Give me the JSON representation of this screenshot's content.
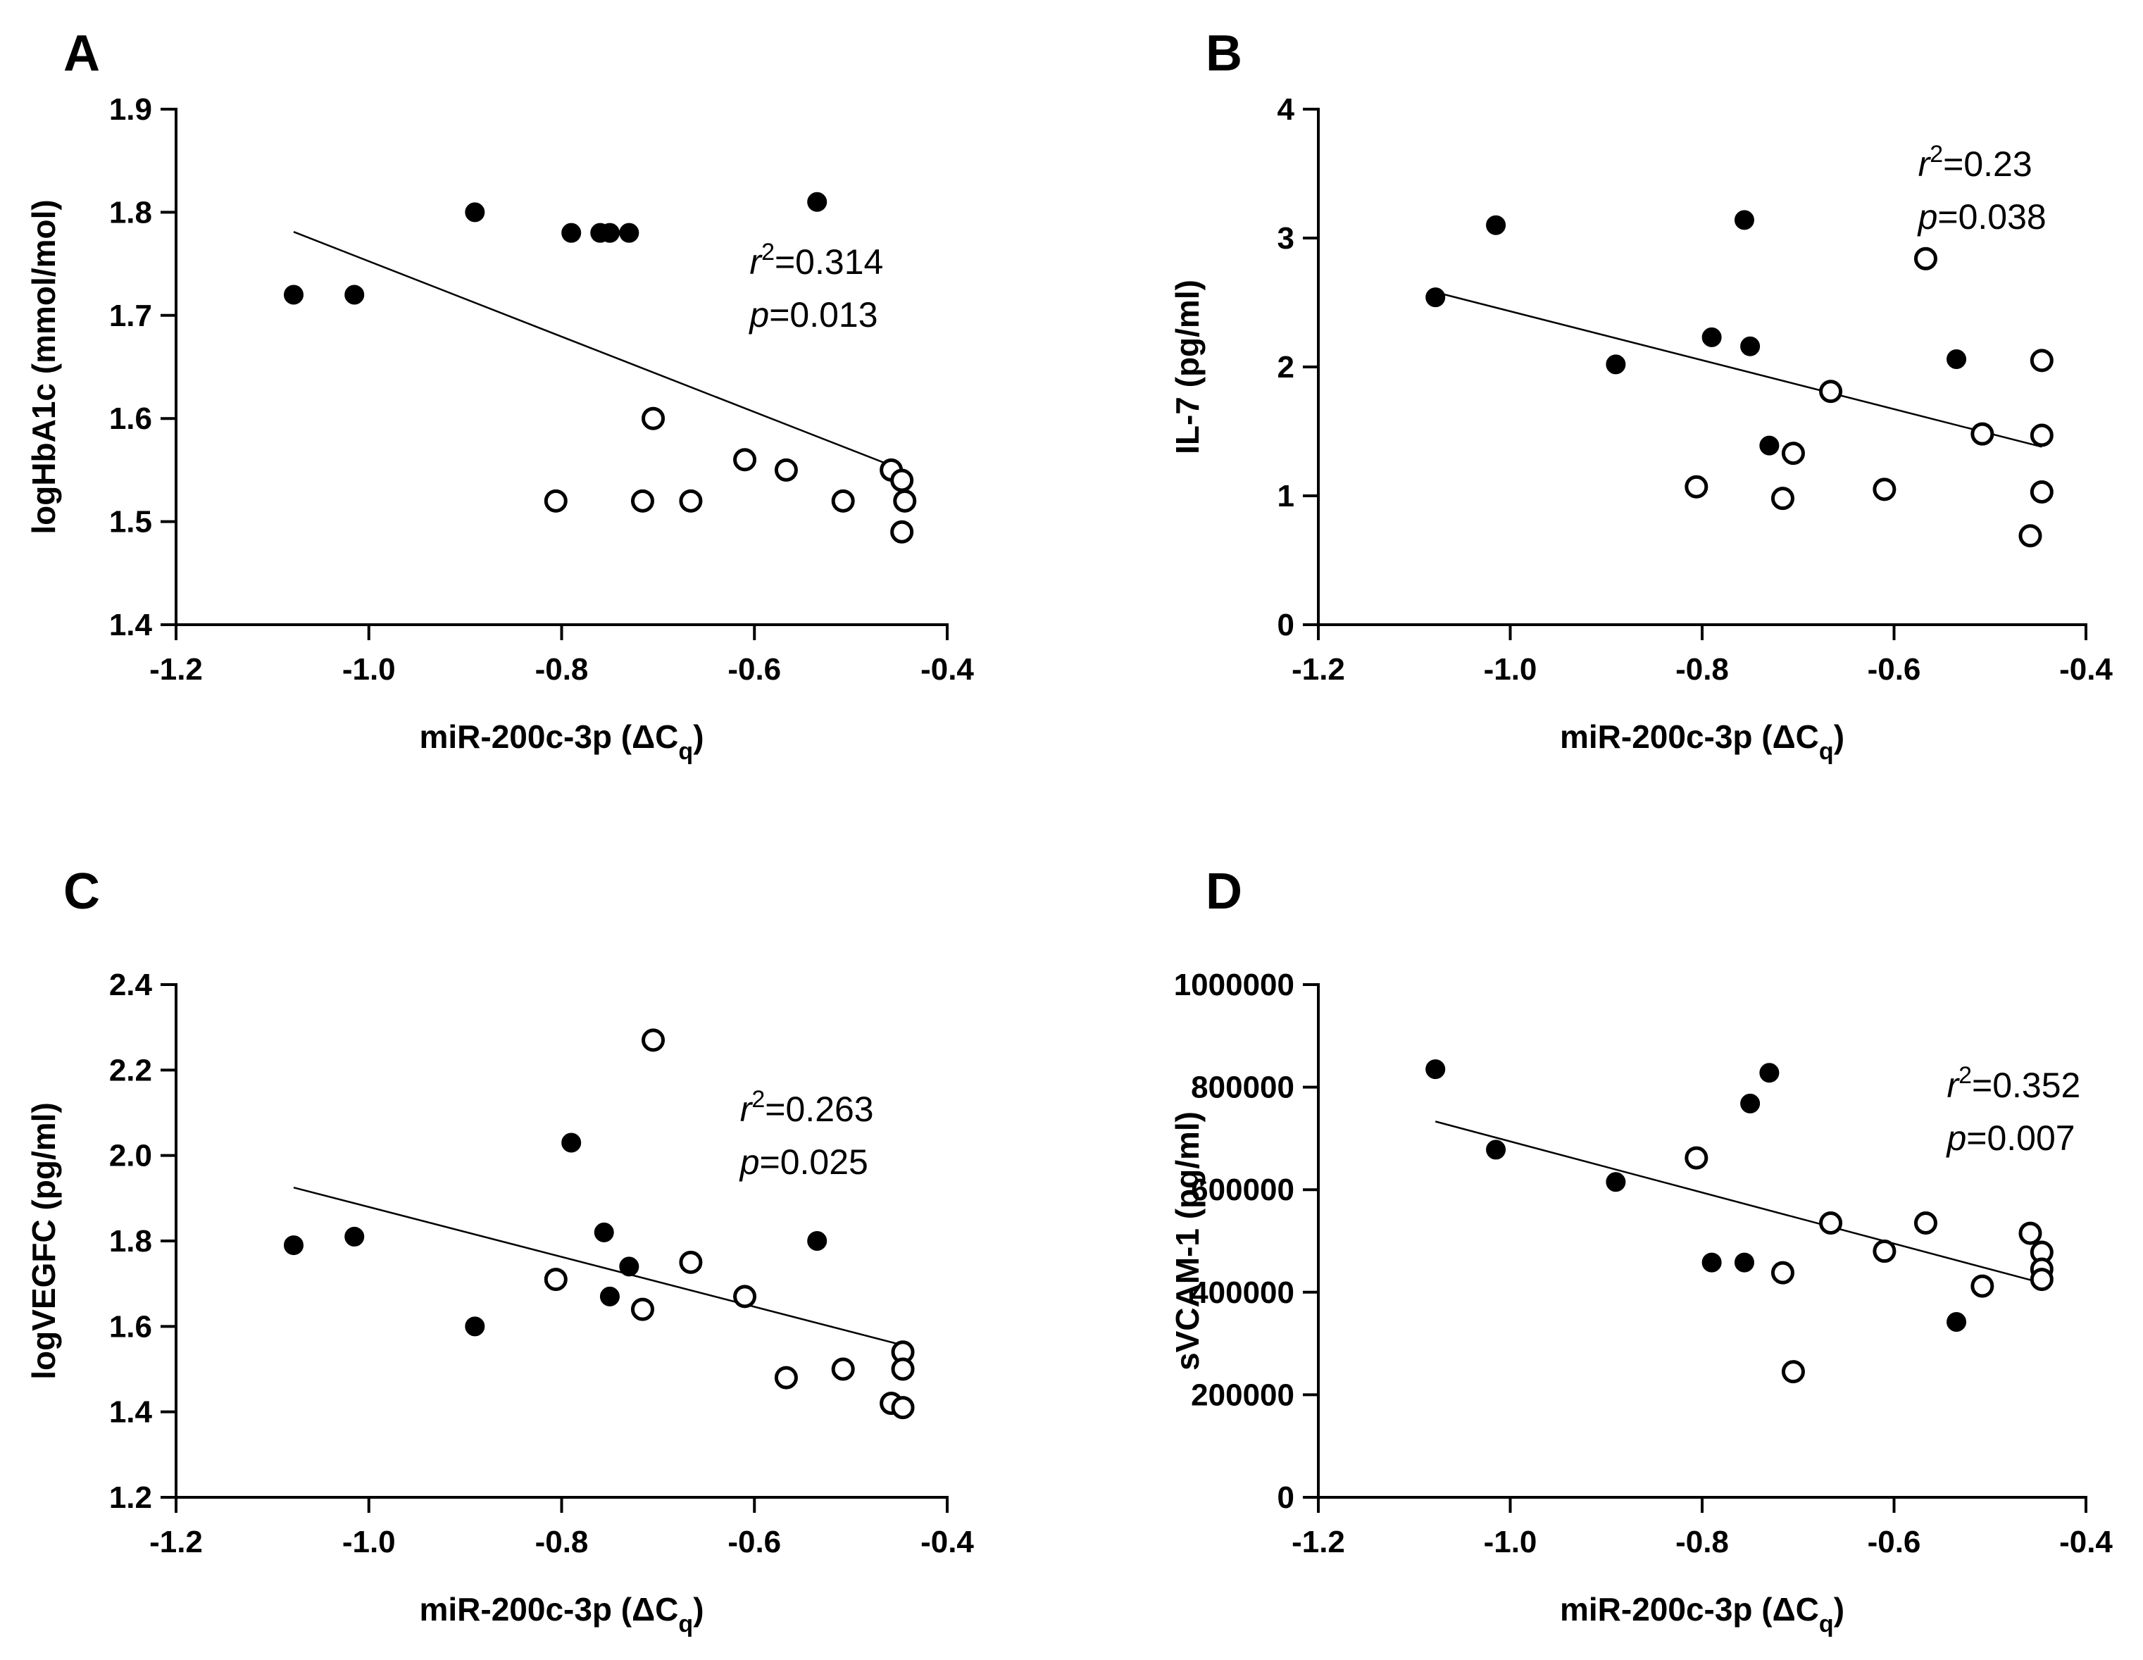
{
  "chart_data": [
    {
      "id": "A",
      "type": "scatter",
      "panel_label": "A",
      "xlabel": "miR-200c-3p (ΔC",
      "xlabel_sub": "q",
      "xlabel_tail": ")",
      "ylabel": "logHbA1c (mmol/mol)",
      "xlim": [
        -1.2,
        -0.4
      ],
      "ylim": [
        1.4,
        1.9
      ],
      "xticks": [
        -1.2,
        -1.0,
        -0.8,
        -0.6,
        -0.4
      ],
      "xtick_labels": [
        "-1.2",
        "-1.0",
        "-0.8",
        "-0.6",
        "-0.4"
      ],
      "yticks": [
        1.4,
        1.5,
        1.6,
        1.7,
        1.8,
        1.9
      ],
      "ytick_labels": [
        "1.4",
        "1.5",
        "1.6",
        "1.7",
        "1.8",
        "1.9"
      ],
      "series": [
        {
          "name": "filled",
          "style": "filled",
          "points": [
            [
              -1.078,
              1.72
            ],
            [
              -1.015,
              1.72
            ],
            [
              -0.89,
              1.8
            ],
            [
              -0.79,
              1.78
            ],
            [
              -0.76,
              1.78
            ],
            [
              -0.75,
              1.78
            ],
            [
              -0.73,
              1.78
            ],
            [
              -0.535,
              1.81
            ]
          ]
        },
        {
          "name": "open",
          "style": "open",
          "points": [
            [
              -0.806,
              1.52
            ],
            [
              -0.705,
              1.6
            ],
            [
              -0.716,
              1.52
            ],
            [
              -0.666,
              1.52
            ],
            [
              -0.61,
              1.56
            ],
            [
              -0.567,
              1.55
            ],
            [
              -0.508,
              1.52
            ],
            [
              -0.458,
              1.55
            ],
            [
              -0.447,
              1.54
            ],
            [
              -0.444,
              1.52
            ],
            [
              -0.447,
              1.49
            ]
          ]
        }
      ],
      "regression": {
        "x": [
          -1.078,
          -0.446
        ],
        "y": [
          1.781,
          1.55
        ]
      },
      "stats": {
        "r2_sym": "r",
        "r2_sup": "2",
        "r2_val": "=0.314",
        "p_sym": "p",
        "p_val": "=0.013",
        "x": -0.605,
        "y": 1.74
      }
    },
    {
      "id": "B",
      "type": "scatter",
      "panel_label": "B",
      "xlabel": "miR-200c-3p (ΔC",
      "xlabel_sub": "q",
      "xlabel_tail": ")",
      "ylabel": "IL-7  (pg/ml)",
      "xlim": [
        -1.2,
        -0.4
      ],
      "ylim": [
        0,
        4
      ],
      "xticks": [
        -1.2,
        -1.0,
        -0.8,
        -0.6,
        -0.4
      ],
      "xtick_labels": [
        "-1.2",
        "-1.0",
        "-0.8",
        "-0.6",
        "-0.4"
      ],
      "yticks": [
        0,
        1,
        2,
        3,
        4
      ],
      "ytick_labels": [
        "0",
        "1",
        "2",
        "3",
        "4"
      ],
      "series": [
        {
          "name": "filled",
          "style": "filled",
          "points": [
            [
              -1.078,
              2.54
            ],
            [
              -1.015,
              3.1
            ],
            [
              -0.89,
              2.02
            ],
            [
              -0.79,
              2.23
            ],
            [
              -0.756,
              3.14
            ],
            [
              -0.75,
              2.16
            ],
            [
              -0.73,
              1.39
            ],
            [
              -0.535,
              2.06
            ]
          ]
        },
        {
          "name": "open",
          "style": "open",
          "points": [
            [
              -0.806,
              1.07
            ],
            [
              -0.716,
              0.98
            ],
            [
              -0.705,
              1.33
            ],
            [
              -0.666,
              1.81
            ],
            [
              -0.61,
              1.05
            ],
            [
              -0.567,
              2.84
            ],
            [
              -0.508,
              1.48
            ],
            [
              -0.458,
              0.69
            ],
            [
              -0.446,
              2.05
            ],
            [
              -0.446,
              1.47
            ],
            [
              -0.446,
              1.03
            ]
          ]
        }
      ],
      "regression": {
        "x": [
          -1.078,
          -0.446
        ],
        "y": [
          2.58,
          1.38
        ]
      },
      "stats": {
        "r2_sym": "r",
        "r2_sup": "2",
        "r2_val": "=0.23",
        "p_sym": "p",
        "p_val": "=0.038",
        "x": -0.575,
        "y": 3.48
      }
    },
    {
      "id": "C",
      "type": "scatter",
      "panel_label": "C",
      "xlabel": "miR-200c-3p (ΔC",
      "xlabel_sub": "q",
      "xlabel_tail": ")",
      "ylabel": "logVEGFC (pg/ml)",
      "xlim": [
        -1.2,
        -0.4
      ],
      "ylim": [
        1.2,
        2.4
      ],
      "xticks": [
        -1.2,
        -1.0,
        -0.8,
        -0.6,
        -0.4
      ],
      "xtick_labels": [
        "-1.2",
        "-1.0",
        "-0.8",
        "-0.6",
        "-0.4"
      ],
      "yticks": [
        1.2,
        1.4,
        1.6,
        1.8,
        2.0,
        2.2,
        2.4
      ],
      "ytick_labels": [
        "1.2",
        "1.4",
        "1.6",
        "1.8",
        "2.0",
        "2.2",
        "2.4"
      ],
      "series": [
        {
          "name": "filled",
          "style": "filled",
          "points": [
            [
              -1.078,
              1.79
            ],
            [
              -1.015,
              1.81
            ],
            [
              -0.89,
              1.6
            ],
            [
              -0.79,
              2.03
            ],
            [
              -0.756,
              1.82
            ],
            [
              -0.75,
              1.67
            ],
            [
              -0.73,
              1.74
            ],
            [
              -0.535,
              1.8
            ]
          ]
        },
        {
          "name": "open",
          "style": "open",
          "points": [
            [
              -0.806,
              1.71
            ],
            [
              -0.716,
              1.64
            ],
            [
              -0.705,
              2.27
            ],
            [
              -0.666,
              1.75
            ],
            [
              -0.61,
              1.67
            ],
            [
              -0.567,
              1.48
            ],
            [
              -0.508,
              1.5
            ],
            [
              -0.458,
              1.42
            ],
            [
              -0.446,
              1.54
            ],
            [
              -0.446,
              1.5
            ],
            [
              -0.446,
              1.41
            ]
          ]
        }
      ],
      "regression": {
        "x": [
          -1.078,
          -0.446
        ],
        "y": [
          1.925,
          1.556
        ]
      },
      "stats": {
        "r2_sym": "r",
        "r2_sup": "2",
        "r2_val": "=0.263",
        "p_sym": "p",
        "p_val": "=0.025",
        "x": -0.615,
        "y": 2.08
      }
    },
    {
      "id": "D",
      "type": "scatter",
      "panel_label": "D",
      "xlabel": "miR-200c-3p (ΔC",
      "xlabel_sub": "q",
      "xlabel_tail": ")",
      "ylabel": "sVCAM-1 (pg/ml)",
      "xlim": [
        -1.2,
        -0.4
      ],
      "ylim": [
        0,
        1000000
      ],
      "xticks": [
        -1.2,
        -1.0,
        -0.8,
        -0.6,
        -0.4
      ],
      "xtick_labels": [
        "-1.2",
        "-1.0",
        "-0.8",
        "-0.6",
        "-0.4"
      ],
      "yticks": [
        0,
        200000,
        400000,
        600000,
        800000,
        1000000
      ],
      "ytick_labels": [
        "0",
        "200000",
        "400000",
        "600000",
        "800000",
        "1000000"
      ],
      "series": [
        {
          "name": "filled",
          "style": "filled",
          "points": [
            [
              -1.078,
              835000
            ],
            [
              -1.015,
              678000
            ],
            [
              -0.89,
              615000
            ],
            [
              -0.79,
              458000
            ],
            [
              -0.756,
              458000
            ],
            [
              -0.75,
              768000
            ],
            [
              -0.73,
              828000
            ],
            [
              -0.535,
              342000
            ]
          ]
        },
        {
          "name": "open",
          "style": "open",
          "points": [
            [
              -0.806,
              662000
            ],
            [
              -0.716,
              438000
            ],
            [
              -0.705,
              245000
            ],
            [
              -0.666,
              535000
            ],
            [
              -0.61,
              480000
            ],
            [
              -0.567,
              535000
            ],
            [
              -0.508,
              412000
            ],
            [
              -0.458,
              515000
            ],
            [
              -0.446,
              478000
            ],
            [
              -0.446,
              445000
            ],
            [
              -0.446,
              425000
            ]
          ]
        }
      ],
      "regression": {
        "x": [
          -1.078,
          -0.446
        ],
        "y": [
          733000,
          418000
        ]
      },
      "stats": {
        "r2_sym": "r",
        "r2_sup": "2",
        "r2_val": "=0.352",
        "p_sym": "p",
        "p_val": "=0.007",
        "x": -0.545,
        "y": 780000
      }
    }
  ]
}
